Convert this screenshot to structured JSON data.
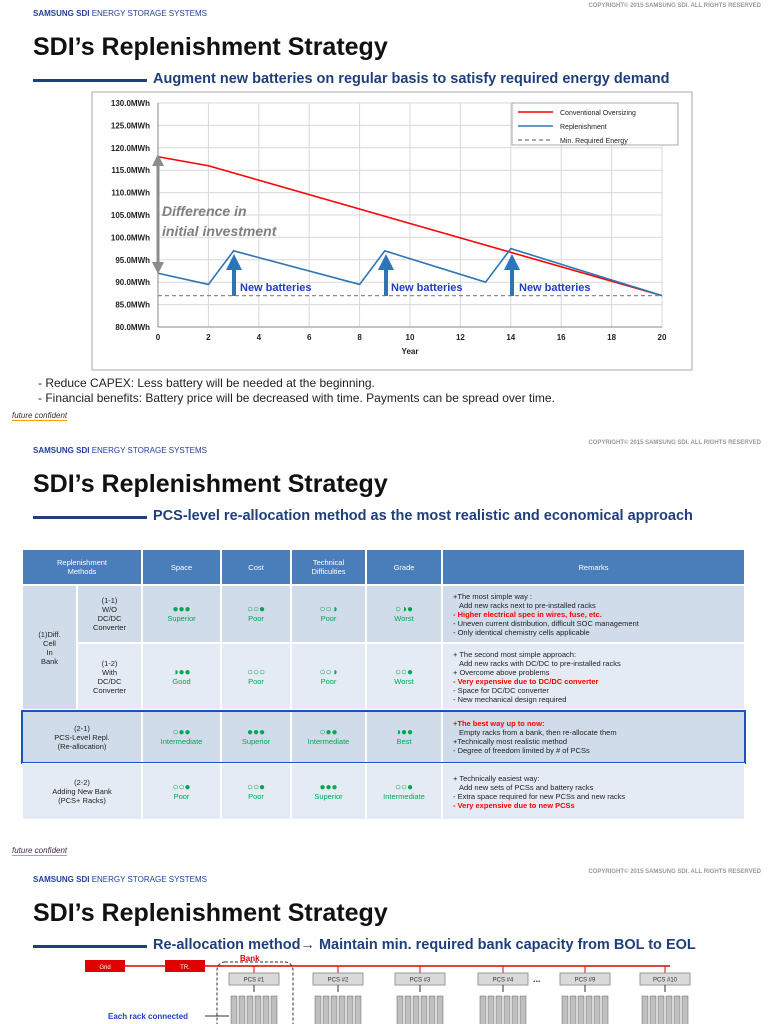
{
  "chart_data": {
    "type": "line",
    "xlabel": "Year",
    "xlim": [
      0,
      20
    ],
    "xticks": [
      0,
      2,
      4,
      6,
      8,
      10,
      12,
      14,
      16,
      18,
      20
    ],
    "ylim": [
      80,
      130
    ],
    "yticks": [
      {
        "value": 80,
        "label": "80.0MWh"
      },
      {
        "value": 85,
        "label": "85.0MWh"
      },
      {
        "value": 90,
        "label": "90.0MWh"
      },
      {
        "value": 95,
        "label": "95.0MWh"
      },
      {
        "value": 100,
        "label": "100.0MWh"
      },
      {
        "value": 105,
        "label": "105.0MWh"
      },
      {
        "value": 110,
        "label": "110.0MWh"
      },
      {
        "value": 115,
        "label": "115.0MWh"
      },
      {
        "value": 120,
        "label": "120.0MWh"
      },
      {
        "value": 125,
        "label": "125.0MWh"
      },
      {
        "value": 130,
        "label": "130.0MWh"
      }
    ],
    "grid": true,
    "legend": "top-right",
    "series": [
      {
        "name": "Conventional Oversizing",
        "color": "#ff0000",
        "x": [
          0,
          2,
          20
        ],
        "values": [
          118,
          116,
          87
        ]
      },
      {
        "name": "Replenishment",
        "color": "#2e75b6",
        "x": [
          0,
          2,
          3,
          8,
          9,
          13,
          14,
          20
        ],
        "values": [
          92,
          89.5,
          97,
          89.5,
          97,
          90,
          97.5,
          87
        ]
      },
      {
        "name": "Min. Required Energy",
        "color": "#8c8c8c",
        "dashed": true,
        "x": [
          0,
          20
        ],
        "values": [
          87,
          87
        ]
      }
    ],
    "annotations": [
      "Difference in",
      "initial investment",
      "New batteries",
      "New batteries",
      "New batteries"
    ]
  },
  "slides": [
    {
      "brand": "SAMSUNG SDI",
      "brand_sub": "ENERGY STORAGE SYSTEMS",
      "copyright": "COPYRIGHT© 2015 SAMSUNG SDI. ALL RIGHTS RESERVED",
      "title": "SDI’s Replenishment Strategy",
      "subtitle": "Augment  new batteries on regular basis to satisfy required energy demand",
      "notes": [
        "- Reduce CAPEX: Less battery will be needed at the beginning.",
        "- Financial benefits: Battery price will be decreased with time. Payments can be spread over time."
      ],
      "footer": "future confident"
    },
    {
      "brand": "SAMSUNG SDI",
      "brand_sub": "ENERGY STORAGE SYSTEMS",
      "copyright": "COPYRIGHT© 2015 SAMSUNG SDI. ALL RIGHTS RESERVED",
      "title": "SDI’s Replenishment Strategy",
      "subtitle": "PCS-level re-allocation method as the most realistic and economical approach",
      "table": {
        "header": [
          "Replenishment\nMethods",
          "Space",
          "Cost",
          "Technical\nDifficulties",
          "Grade",
          "Remarks"
        ],
        "rows": [
          {
            "group": "(1)Diff.\nCell\nIn\nBank",
            "method": "(1-1)\nW/O\nDC/DC\nConverter",
            "cells": [
              {
                "symbol": "●●●",
                "label": "Superior"
              },
              {
                "symbol": "○○●",
                "label": "Poor"
              },
              {
                "symbol": "○○◑",
                "label": "Poor"
              },
              {
                "symbol": "○◑●",
                "label": "Worst"
              }
            ],
            "remarks": [
              {
                "text": "+The most simple way :"
              },
              {
                "text": "Add new racks next to pre-installed racks"
              },
              {
                "text": "- Higher electrical spec in wires, fuse, etc.",
                "color": "#ff0000"
              },
              {
                "text": "- Uneven current distribution, difficult SOC management"
              },
              {
                "text": "- Only identical chemistry cells applicable"
              }
            ]
          },
          {
            "method": "(1-2)\nWith\nDC/DC\nConverter",
            "cells": [
              {
                "symbol": "◑●●",
                "label": "Good"
              },
              {
                "symbol": "○○○",
                "label": "Poor"
              },
              {
                "symbol": "○○◑",
                "label": "Poor"
              },
              {
                "symbol": "○○●",
                "label": "Worst"
              }
            ],
            "remarks": [
              {
                "text": "+ The second most simple approach:"
              },
              {
                "text": "Add new racks with DC/DC to pre-installed racks"
              },
              {
                "text": "+ Overcome above problems"
              },
              {
                "text": "- Very expensive due to DC/DC converter",
                "color": "#ff0000"
              },
              {
                "text": "- Space for DC/DC converter"
              },
              {
                "text": "- New mechanical design required"
              }
            ]
          },
          {
            "method": "(2-1)\nPCS-Level Repl.\n(Re-allocation)",
            "highlight": true,
            "cells": [
              {
                "symbol": "○●●",
                "label": "Intermediate"
              },
              {
                "symbol": "●●●",
                "label": "Superior"
              },
              {
                "symbol": "○●●",
                "label": "Intermediate"
              },
              {
                "symbol": "◑●●",
                "label": "Best"
              }
            ],
            "remarks": [
              {
                "text": "+The best way up to now:",
                "color": "#ff0000"
              },
              {
                "text": "Empty racks from a bank, then re-allocate them"
              },
              {
                "text": "+Technically most realistic method"
              },
              {
                "text": "- Degree of freedom limited by # of PCSs"
              }
            ]
          },
          {
            "method": "(2-2)\nAdding New Bank\n(PCS+ Racks)",
            "cells": [
              {
                "symbol": "○○●",
                "label": "Poor"
              },
              {
                "symbol": "○○●",
                "label": "Poor"
              },
              {
                "symbol": "●●●",
                "label": "Superior"
              },
              {
                "symbol": "○○●",
                "label": "Intermediate"
              }
            ],
            "remarks": [
              {
                "text": "+ Technically easiest way:"
              },
              {
                "text": "Add new sets of PCSs and battery racks"
              },
              {
                "text": "- Extra space required for new PCSs and new racks"
              },
              {
                "text": "- Very expensive due to new PCSs",
                "color": "#ff0000"
              }
            ]
          }
        ]
      },
      "footer": "future confident"
    },
    {
      "brand": "SAMSUNG SDI",
      "brand_sub": "ENERGY STORAGE SYSTEMS",
      "copyright": "COPYRIGHT© 2015 SAMSUNG SDI. ALL RIGHTS RESERVED",
      "title": "SDI’s Replenishment Strategy",
      "subtitle": "Re-allocation method→ Maintain min. required bank capacity from BOL to EOL",
      "diagram": {
        "grid": "Grid",
        "transformer": "TR.",
        "bank": "Bank",
        "pcs": [
          "PCS #1",
          "PCS #2",
          "PCS #3",
          "PCS #4",
          "PCS #9",
          "PCS #10"
        ],
        "ellipsis": "...",
        "rack_note": "Each rack  connected"
      }
    }
  ]
}
